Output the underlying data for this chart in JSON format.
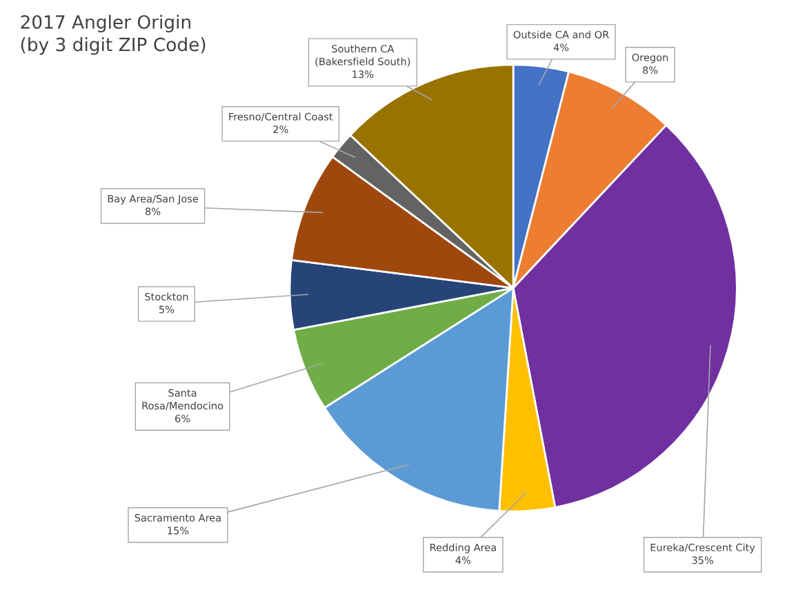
{
  "chart_data": {
    "type": "pie",
    "title": "2017 Angler Origin\n(by 3 digit ZIP Code)",
    "categories": [
      "Outside CA and OR",
      "Oregon",
      "Eureka/Crescent City",
      "Redding Area",
      "Sacramento Area",
      "Santa\nRosa/Mendocino",
      "Stockton",
      "Bay Area/San Jose",
      "Fresno/Central Coast",
      "Southern CA\n(Bakersfield South)"
    ],
    "values": [
      4,
      8,
      35,
      4,
      15,
      6,
      5,
      8,
      2,
      13
    ],
    "value_labels": [
      "4%",
      "8%",
      "35%",
      "4%",
      "15%",
      "6%",
      "5%",
      "8%",
      "2%",
      "13%"
    ],
    "colors": [
      "#4472c4",
      "#ed7d31",
      "#7030a0",
      "#ffc000",
      "#5b9bd5",
      "#70ad47",
      "#264478",
      "#9e480e",
      "#636363",
      "#997300"
    ],
    "legend": false
  }
}
